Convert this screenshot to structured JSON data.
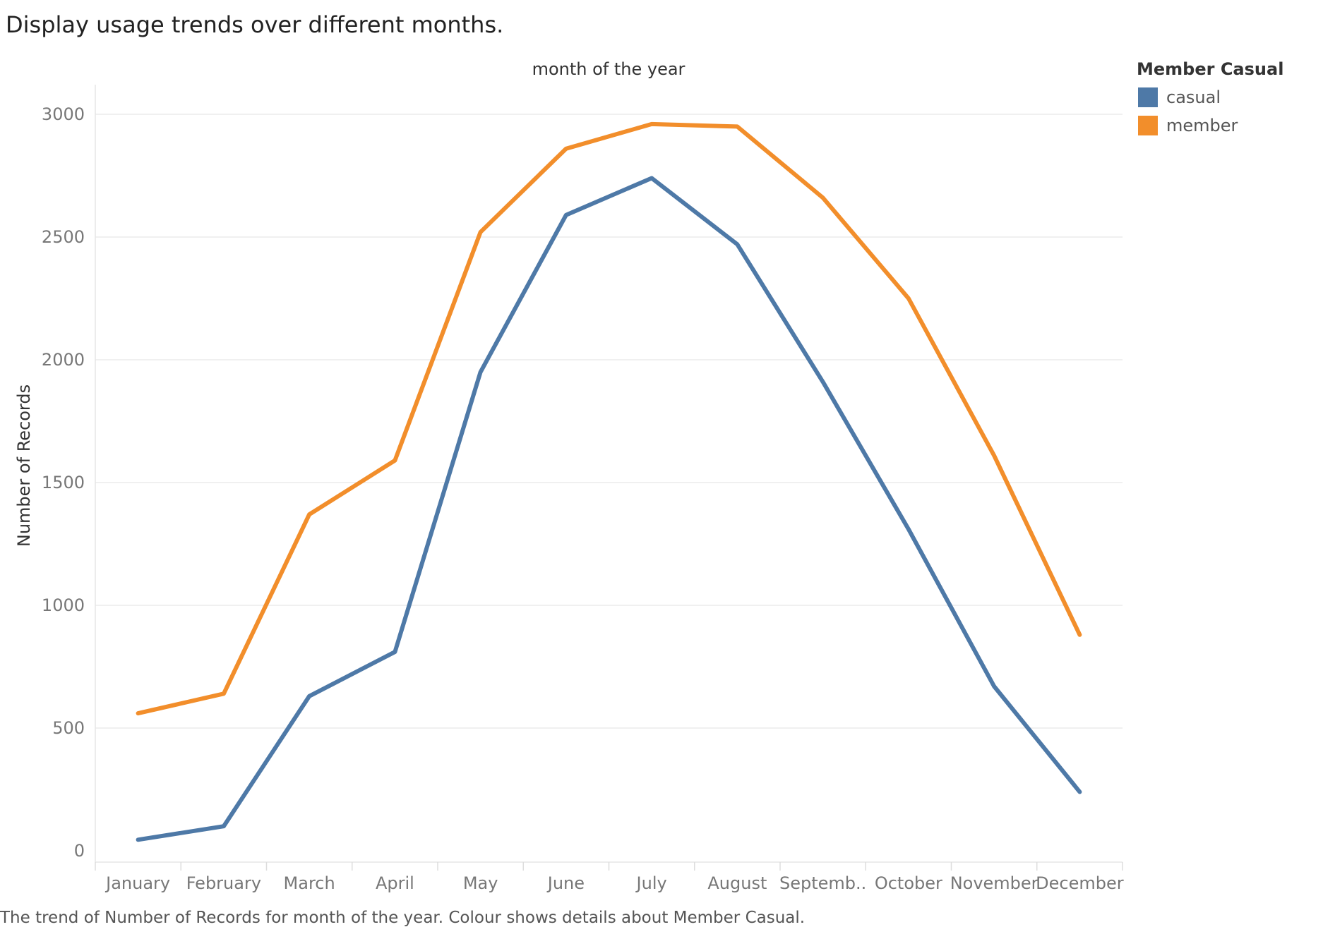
{
  "page": {
    "title": "Display usage trends over different months.",
    "caption": "The trend of  Number of Records for month of the year.  Colour shows details about Member Casual."
  },
  "legend": {
    "title": "Member Casual",
    "items": [
      {
        "label": "casual",
        "color": "#4e79a7"
      },
      {
        "label": "member",
        "color": "#f28e2b"
      }
    ]
  },
  "chart_data": {
    "type": "line",
    "title": "",
    "xlabel": "month of the year",
    "ylabel": "Number of Records",
    "ylim": [
      0,
      3000
    ],
    "yticks": [
      0,
      500,
      1000,
      1500,
      2000,
      2500,
      3000
    ],
    "grid": true,
    "legend_position": "top-right",
    "categories": [
      "January",
      "February",
      "March",
      "April",
      "May",
      "June",
      "July",
      "August",
      "Septemb..",
      "October",
      "November",
      "December"
    ],
    "series": [
      {
        "name": "casual",
        "color": "#4e79a7",
        "values": [
          45,
          100,
          630,
          810,
          1950,
          2590,
          2740,
          2470,
          1910,
          1310,
          670,
          240
        ]
      },
      {
        "name": "member",
        "color": "#f28e2b",
        "values": [
          560,
          640,
          1370,
          1590,
          2520,
          2860,
          2960,
          2950,
          2660,
          2250,
          1610,
          880
        ]
      }
    ]
  }
}
